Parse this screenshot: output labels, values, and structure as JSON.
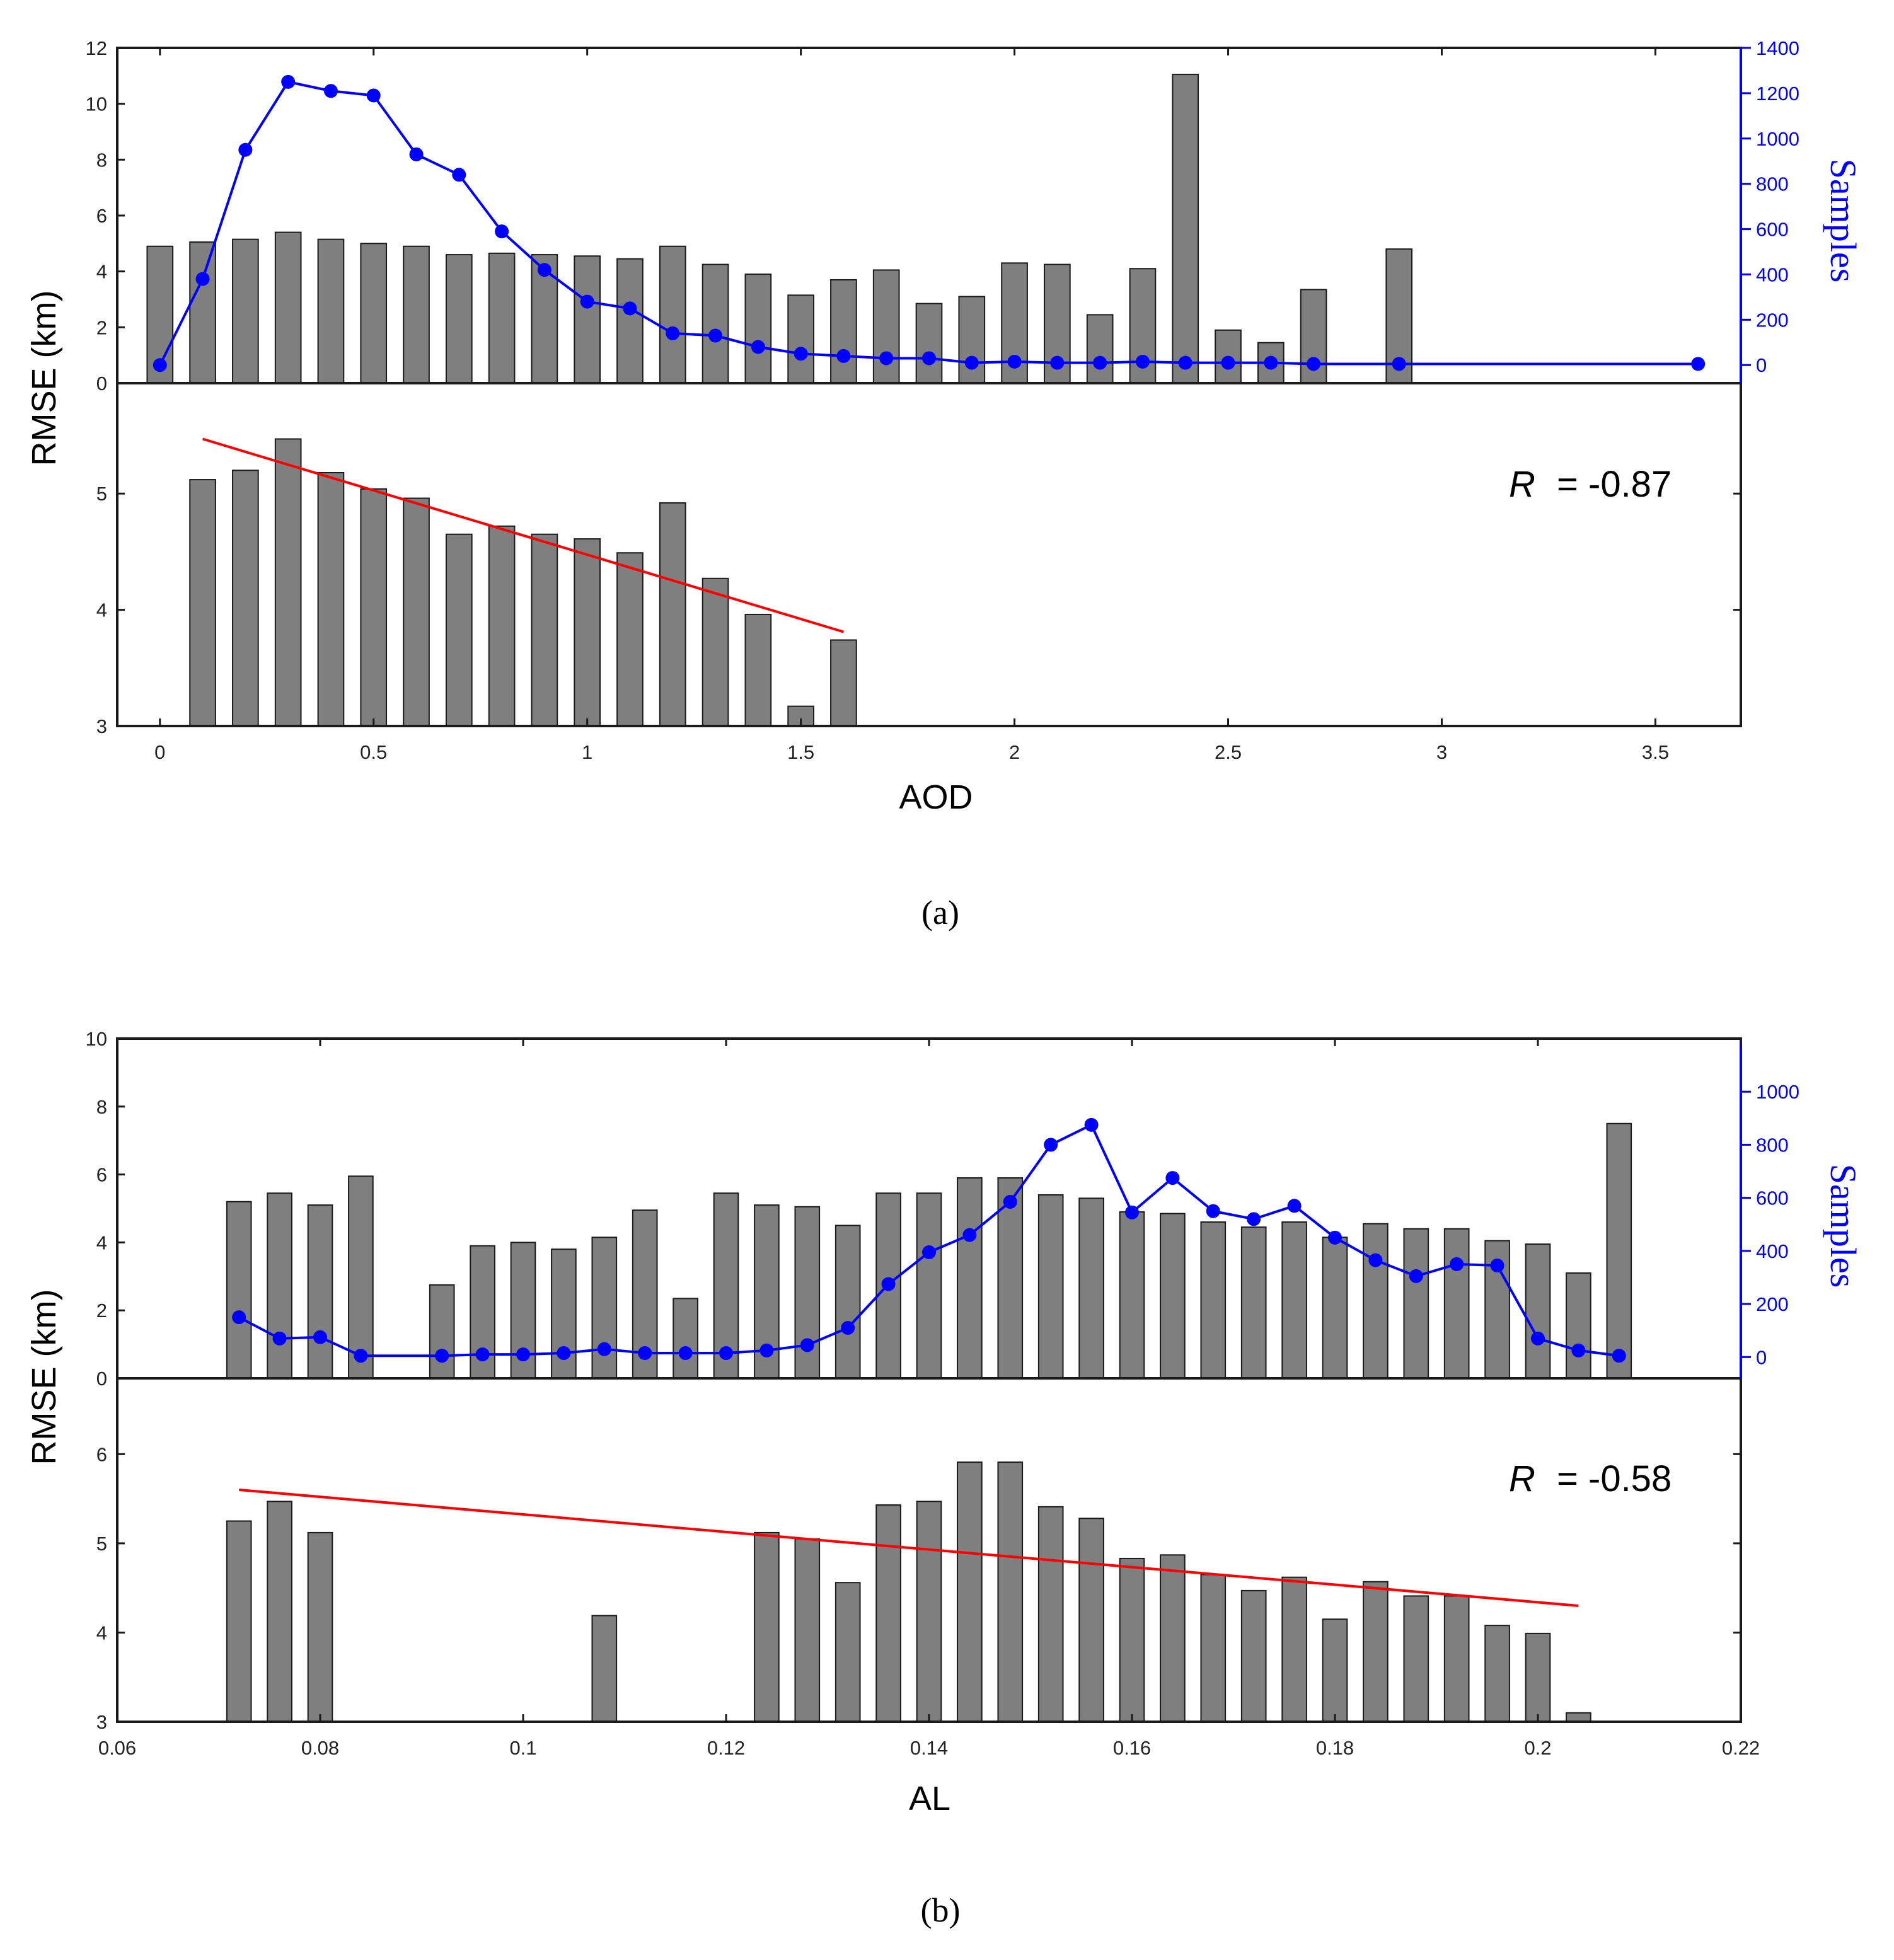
{
  "chart_data": [
    {
      "type": "bar",
      "caption": "(a)",
      "xlabel": "AOD",
      "ylabel": "RMSE (km)",
      "y2label": "Samples",
      "xlim": [
        -0.1,
        3.7
      ],
      "xticks": [
        0,
        0.5,
        1,
        1.5,
        2,
        2.5,
        3,
        3.5
      ],
      "xtick_labels": [
        "0",
        "0.5",
        "1",
        "1.5",
        "2",
        "2.5",
        "3",
        "3.5"
      ],
      "top": {
        "ylim": [
          0,
          12
        ],
        "yticks": [
          0,
          2,
          4,
          6,
          8,
          10,
          12
        ],
        "ytick_labels": [
          "0",
          "2",
          "4",
          "6",
          "8",
          "10",
          "12"
        ],
        "y2lim": [
          -80,
          1400
        ],
        "y2ticks": [
          0,
          200,
          400,
          600,
          800,
          1000,
          1200,
          1400
        ],
        "y2tick_labels": [
          "0",
          "200",
          "400",
          "600",
          "800",
          "1000",
          "1200",
          "1400"
        ],
        "bars": [
          {
            "x": 0.0,
            "v": 4.9
          },
          {
            "x": 0.1,
            "v": 5.05
          },
          {
            "x": 0.2,
            "v": 5.15
          },
          {
            "x": 0.3,
            "v": 5.4
          },
          {
            "x": 0.4,
            "v": 5.15
          },
          {
            "x": 0.5,
            "v": 5.0
          },
          {
            "x": 0.6,
            "v": 4.9
          },
          {
            "x": 0.7,
            "v": 4.6
          },
          {
            "x": 0.8,
            "v": 4.65
          },
          {
            "x": 0.9,
            "v": 4.6
          },
          {
            "x": 1.0,
            "v": 4.55
          },
          {
            "x": 1.1,
            "v": 4.45
          },
          {
            "x": 1.2,
            "v": 4.9
          },
          {
            "x": 1.3,
            "v": 4.25
          },
          {
            "x": 1.4,
            "v": 3.9
          },
          {
            "x": 1.5,
            "v": 3.15
          },
          {
            "x": 1.6,
            "v": 3.7
          },
          {
            "x": 1.7,
            "v": 4.05
          },
          {
            "x": 1.8,
            "v": 2.85
          },
          {
            "x": 1.9,
            "v": 3.1
          },
          {
            "x": 2.0,
            "v": 4.3
          },
          {
            "x": 2.1,
            "v": 4.25
          },
          {
            "x": 2.2,
            "v": 2.45
          },
          {
            "x": 2.3,
            "v": 4.1
          },
          {
            "x": 2.4,
            "v": 11.05
          },
          {
            "x": 2.5,
            "v": 1.9
          },
          {
            "x": 2.6,
            "v": 1.45
          },
          {
            "x": 2.7,
            "v": 3.35
          },
          {
            "x": 2.9,
            "v": 4.8
          }
        ],
        "samples_series": {
          "name": "Samples",
          "x": [
            0.0,
            0.1,
            0.2,
            0.3,
            0.4,
            0.5,
            0.6,
            0.7,
            0.8,
            0.9,
            1.0,
            1.1,
            1.2,
            1.3,
            1.4,
            1.5,
            1.6,
            1.7,
            1.8,
            1.9,
            2.0,
            2.1,
            2.2,
            2.3,
            2.4,
            2.5,
            2.6,
            2.7,
            2.9,
            3.6
          ],
          "y": [
            0,
            380,
            950,
            1250,
            1210,
            1190,
            930,
            840,
            590,
            420,
            280,
            250,
            140,
            130,
            80,
            50,
            40,
            30,
            30,
            10,
            15,
            10,
            10,
            15,
            10,
            10,
            10,
            5,
            5,
            5
          ]
        }
      },
      "bottom": {
        "ylim": [
          3,
          5.95
        ],
        "yticks": [
          3,
          4,
          5
        ],
        "ytick_labels": [
          "3",
          "4",
          "5"
        ],
        "bars": [
          {
            "x": 0.1,
            "v": 5.12
          },
          {
            "x": 0.2,
            "v": 5.2
          },
          {
            "x": 0.3,
            "v": 5.47
          },
          {
            "x": 0.4,
            "v": 5.18
          },
          {
            "x": 0.5,
            "v": 5.04
          },
          {
            "x": 0.6,
            "v": 4.96
          },
          {
            "x": 0.7,
            "v": 4.65
          },
          {
            "x": 0.8,
            "v": 4.72
          },
          {
            "x": 0.9,
            "v": 4.65
          },
          {
            "x": 1.0,
            "v": 4.61
          },
          {
            "x": 1.1,
            "v": 4.49
          },
          {
            "x": 1.2,
            "v": 4.92
          },
          {
            "x": 1.3,
            "v": 4.27
          },
          {
            "x": 1.4,
            "v": 3.96
          },
          {
            "x": 1.5,
            "v": 3.17
          },
          {
            "x": 1.6,
            "v": 3.74
          }
        ],
        "fit_line": {
          "x": [
            0.1,
            1.6
          ],
          "y": [
            5.47,
            3.81
          ]
        },
        "r_symbol": "R",
        "r_value": "= -0.87"
      }
    },
    {
      "type": "bar",
      "caption": "(b)",
      "xlabel": "AL",
      "ylabel": "RMSE (km)",
      "y2label": "Samples",
      "xlim": [
        0.06,
        0.22
      ],
      "xticks": [
        0.06,
        0.08,
        0.1,
        0.12,
        0.14,
        0.16,
        0.18,
        0.2,
        0.22
      ],
      "xtick_labels": [
        "0.06",
        "0.08",
        "0.1",
        "0.12",
        "0.14",
        "0.16",
        "0.18",
        "0.2",
        "0.22"
      ],
      "top": {
        "ylim": [
          0,
          10
        ],
        "yticks": [
          0,
          2,
          4,
          6,
          8,
          10
        ],
        "ytick_labels": [
          "0",
          "2",
          "4",
          "6",
          "8",
          "10"
        ],
        "y2lim": [
          -80,
          1200
        ],
        "y2ticks": [
          0,
          200,
          400,
          600,
          800,
          1000
        ],
        "y2tick_labels": [
          "0",
          "200",
          "400",
          "600",
          "800",
          "1000"
        ],
        "bars": [
          {
            "x": 0.072,
            "v": 5.2
          },
          {
            "x": 0.076,
            "v": 5.45
          },
          {
            "x": 0.08,
            "v": 5.1
          },
          {
            "x": 0.084,
            "v": 5.95
          },
          {
            "x": 0.092,
            "v": 2.75
          },
          {
            "x": 0.096,
            "v": 3.9
          },
          {
            "x": 0.1,
            "v": 4.0
          },
          {
            "x": 0.104,
            "v": 3.8
          },
          {
            "x": 0.108,
            "v": 4.15
          },
          {
            "x": 0.112,
            "v": 4.95
          },
          {
            "x": 0.116,
            "v": 2.35
          },
          {
            "x": 0.12,
            "v": 5.45
          },
          {
            "x": 0.124,
            "v": 5.1
          },
          {
            "x": 0.128,
            "v": 5.05
          },
          {
            "x": 0.132,
            "v": 4.5
          },
          {
            "x": 0.136,
            "v": 5.45
          },
          {
            "x": 0.14,
            "v": 5.45
          },
          {
            "x": 0.144,
            "v": 5.9
          },
          {
            "x": 0.148,
            "v": 5.9
          },
          {
            "x": 0.152,
            "v": 5.4
          },
          {
            "x": 0.156,
            "v": 5.3
          },
          {
            "x": 0.16,
            "v": 4.9
          },
          {
            "x": 0.164,
            "v": 4.85
          },
          {
            "x": 0.168,
            "v": 4.6
          },
          {
            "x": 0.172,
            "v": 4.45
          },
          {
            "x": 0.176,
            "v": 4.6
          },
          {
            "x": 0.18,
            "v": 4.15
          },
          {
            "x": 0.184,
            "v": 4.55
          },
          {
            "x": 0.188,
            "v": 4.4
          },
          {
            "x": 0.192,
            "v": 4.4
          },
          {
            "x": 0.196,
            "v": 4.05
          },
          {
            "x": 0.2,
            "v": 3.95
          },
          {
            "x": 0.204,
            "v": 3.1
          },
          {
            "x": 0.208,
            "v": 7.5
          }
        ],
        "samples_series": {
          "name": "Samples",
          "x": [
            0.072,
            0.076,
            0.08,
            0.084,
            0.092,
            0.096,
            0.1,
            0.104,
            0.108,
            0.112,
            0.116,
            0.12,
            0.124,
            0.128,
            0.132,
            0.136,
            0.14,
            0.144,
            0.148,
            0.152,
            0.156,
            0.16,
            0.164,
            0.168,
            0.172,
            0.176,
            0.18,
            0.184,
            0.188,
            0.192,
            0.196,
            0.2,
            0.204,
            0.208
          ],
          "y": [
            150,
            70,
            75,
            5,
            5,
            10,
            10,
            15,
            30,
            15,
            15,
            15,
            25,
            45,
            110,
            275,
            395,
            460,
            585,
            800,
            875,
            545,
            675,
            550,
            520,
            570,
            450,
            365,
            305,
            350,
            345,
            70,
            25,
            5
          ]
        }
      },
      "bottom": {
        "ylim": [
          3,
          6.85
        ],
        "yticks": [
          3,
          4,
          5,
          6
        ],
        "ytick_labels": [
          "3",
          "4",
          "5",
          "6"
        ],
        "bars": [
          {
            "x": 0.072,
            "v": 5.25
          },
          {
            "x": 0.076,
            "v": 5.47
          },
          {
            "x": 0.08,
            "v": 5.12
          },
          {
            "x": 0.108,
            "v": 4.19
          },
          {
            "x": 0.124,
            "v": 5.12
          },
          {
            "x": 0.128,
            "v": 5.05
          },
          {
            "x": 0.132,
            "v": 4.56
          },
          {
            "x": 0.136,
            "v": 5.43
          },
          {
            "x": 0.14,
            "v": 5.47
          },
          {
            "x": 0.144,
            "v": 5.91
          },
          {
            "x": 0.148,
            "v": 5.91
          },
          {
            "x": 0.152,
            "v": 5.41
          },
          {
            "x": 0.156,
            "v": 5.28
          },
          {
            "x": 0.16,
            "v": 4.83
          },
          {
            "x": 0.164,
            "v": 4.87
          },
          {
            "x": 0.168,
            "v": 4.65
          },
          {
            "x": 0.172,
            "v": 4.47
          },
          {
            "x": 0.176,
            "v": 4.62
          },
          {
            "x": 0.18,
            "v": 4.15
          },
          {
            "x": 0.184,
            "v": 4.57
          },
          {
            "x": 0.188,
            "v": 4.41
          },
          {
            "x": 0.192,
            "v": 4.41
          },
          {
            "x": 0.196,
            "v": 4.08
          },
          {
            "x": 0.2,
            "v": 3.99
          },
          {
            "x": 0.204,
            "v": 3.1
          }
        ],
        "fit_line": {
          "x": [
            0.072,
            0.204
          ],
          "y": [
            5.6,
            4.3
          ]
        },
        "r_symbol": "R",
        "r_value": "= -0.58"
      }
    }
  ]
}
